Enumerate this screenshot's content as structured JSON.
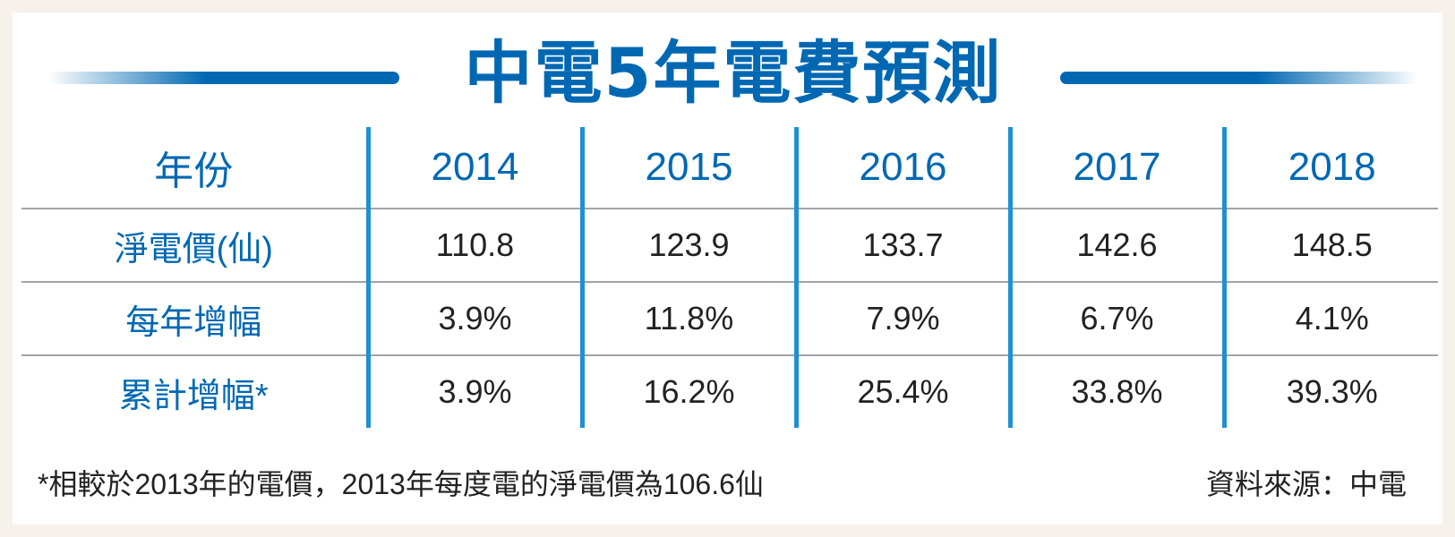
{
  "title": "中電5年電費預測",
  "header": {
    "row_label": "年份",
    "years": [
      "2014",
      "2015",
      "2016",
      "2017",
      "2018"
    ]
  },
  "rows": [
    {
      "label": "淨電價(仙)",
      "values": [
        "110.8",
        "123.9",
        "133.7",
        "142.6",
        "148.5"
      ]
    },
    {
      "label": "每年增幅",
      "values": [
        "3.9%",
        "11.8%",
        "7.9%",
        "6.7%",
        "4.1%"
      ]
    },
    {
      "label": "累計增幅*",
      "values": [
        "3.9%",
        "16.2%",
        "25.4%",
        "33.8%",
        "39.3%"
      ]
    }
  ],
  "footnote": "*相較於2013年的電價，2013年每度電的淨電價為106.6仙",
  "source": "資料來源：中電",
  "colors": {
    "accent": "#0068b3",
    "divider": "#1f8fd6",
    "rule": "#9ea4a8",
    "background": "#f6f1ea"
  }
}
